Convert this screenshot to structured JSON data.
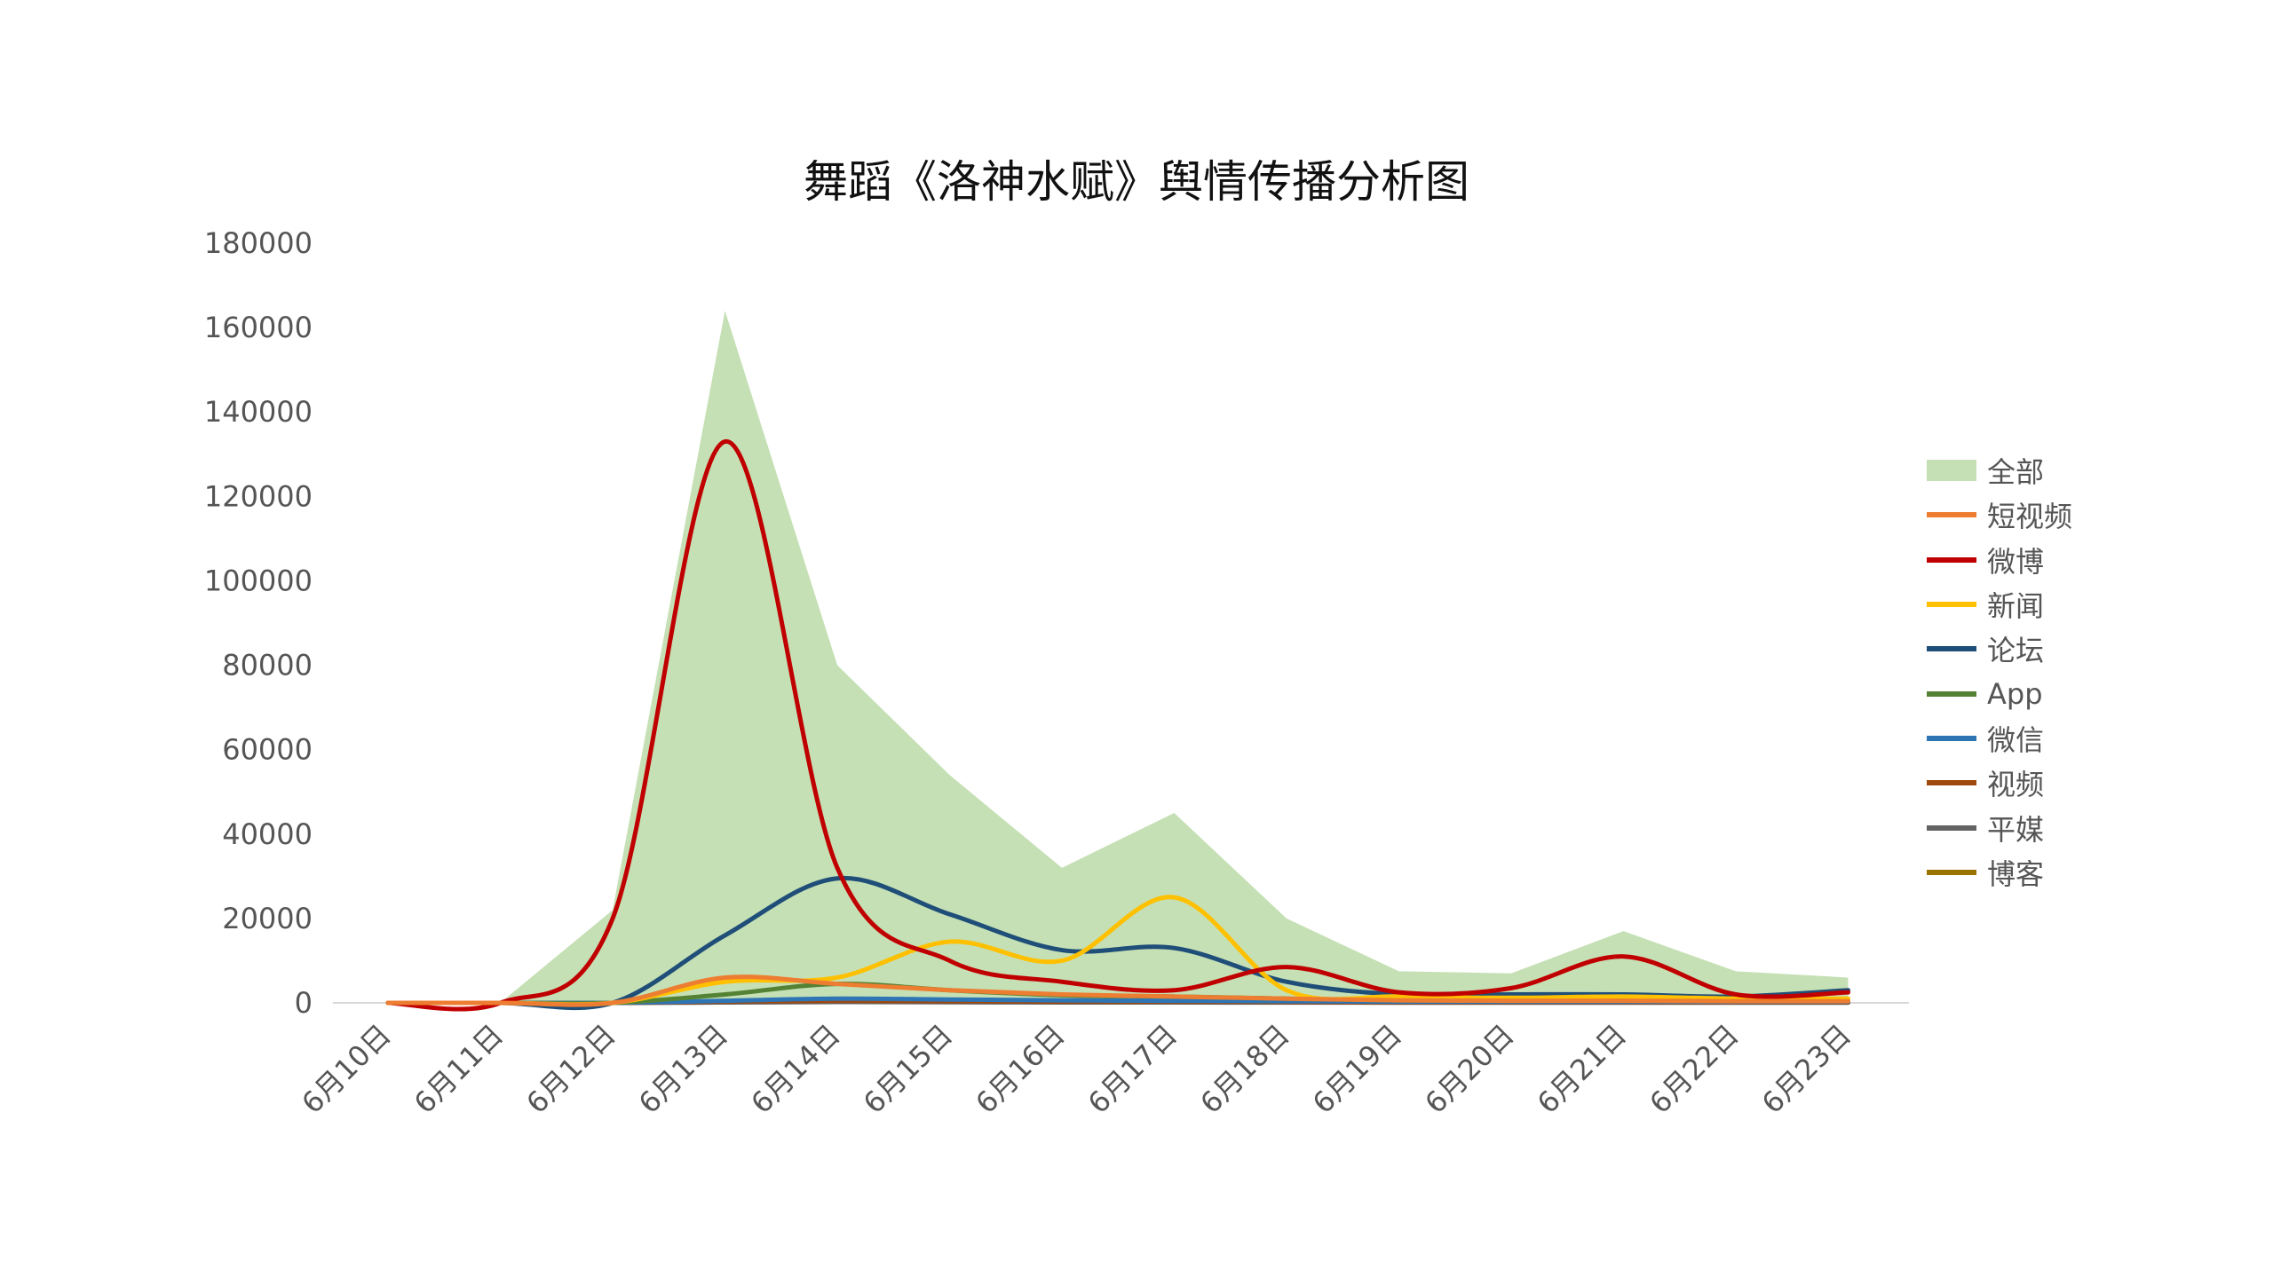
{
  "chart_data": {
    "type": "line",
    "title": "舞蹈《洛神水赋》舆情传播分析图",
    "categories": [
      "6月10日",
      "6月11日",
      "6月12日",
      "6月13日",
      "6月14日",
      "6月15日",
      "6月16日",
      "6月17日",
      "6月18日",
      "6月19日",
      "6月20日",
      "6月21日",
      "6月22日",
      "6月23日"
    ],
    "ylim": [
      0,
      180000
    ],
    "yticks": [
      "0",
      "20000",
      "40000",
      "60000",
      "80000",
      "100000",
      "120000",
      "140000",
      "160000",
      "180000"
    ],
    "grid": false,
    "legend_position": "right",
    "series": [
      {
        "name": "全部",
        "kind": "area",
        "color": "#c5e0b4",
        "values": [
          0,
          0,
          22000,
          164000,
          80000,
          54000,
          32000,
          45000,
          20000,
          7500,
          7000,
          17000,
          7500,
          6000
        ]
      },
      {
        "name": "短视频",
        "kind": "line",
        "color": "#ed7d31",
        "values": [
          0,
          0,
          0,
          6000,
          4500,
          3000,
          2000,
          1500,
          1000,
          600,
          500,
          500,
          400,
          400
        ]
      },
      {
        "name": "微博",
        "kind": "line",
        "color": "#c00000",
        "values": [
          0,
          0,
          20000,
          133000,
          32000,
          10000,
          5000,
          3000,
          8500,
          2500,
          3500,
          11000,
          2000,
          2500
        ]
      },
      {
        "name": "新闻",
        "kind": "line",
        "color": "#ffc000",
        "values": [
          0,
          0,
          0,
          5000,
          6000,
          14500,
          10000,
          25000,
          3000,
          1500,
          1200,
          1500,
          1000,
          1000
        ]
      },
      {
        "name": "论坛",
        "kind": "line",
        "color": "#1f4e79",
        "values": [
          0,
          0,
          0,
          16000,
          29500,
          21000,
          12500,
          13000,
          5000,
          2000,
          2000,
          2000,
          1500,
          3000
        ]
      },
      {
        "name": "App",
        "kind": "line",
        "color": "#548235",
        "values": [
          0,
          0,
          0,
          2000,
          4500,
          3000,
          1800,
          1500,
          1000,
          600,
          500,
          600,
          500,
          500
        ]
      },
      {
        "name": "微信",
        "kind": "line",
        "color": "#2e75b6",
        "values": [
          0,
          0,
          0,
          500,
          1000,
          800,
          600,
          500,
          400,
          300,
          300,
          300,
          300,
          300
        ]
      },
      {
        "name": "视频",
        "kind": "line",
        "color": "#9e480e",
        "values": [
          0,
          0,
          0,
          300,
          500,
          400,
          300,
          300,
          200,
          150,
          150,
          150,
          150,
          150
        ]
      },
      {
        "name": "平媒",
        "kind": "line",
        "color": "#636363",
        "values": [
          0,
          0,
          0,
          100,
          200,
          150,
          100,
          100,
          80,
          60,
          60,
          60,
          60,
          60
        ]
      },
      {
        "name": "博客",
        "kind": "line",
        "color": "#997300",
        "values": [
          0,
          0,
          0,
          200,
          300,
          250,
          200,
          200,
          150,
          100,
          100,
          100,
          100,
          100
        ]
      }
    ]
  }
}
